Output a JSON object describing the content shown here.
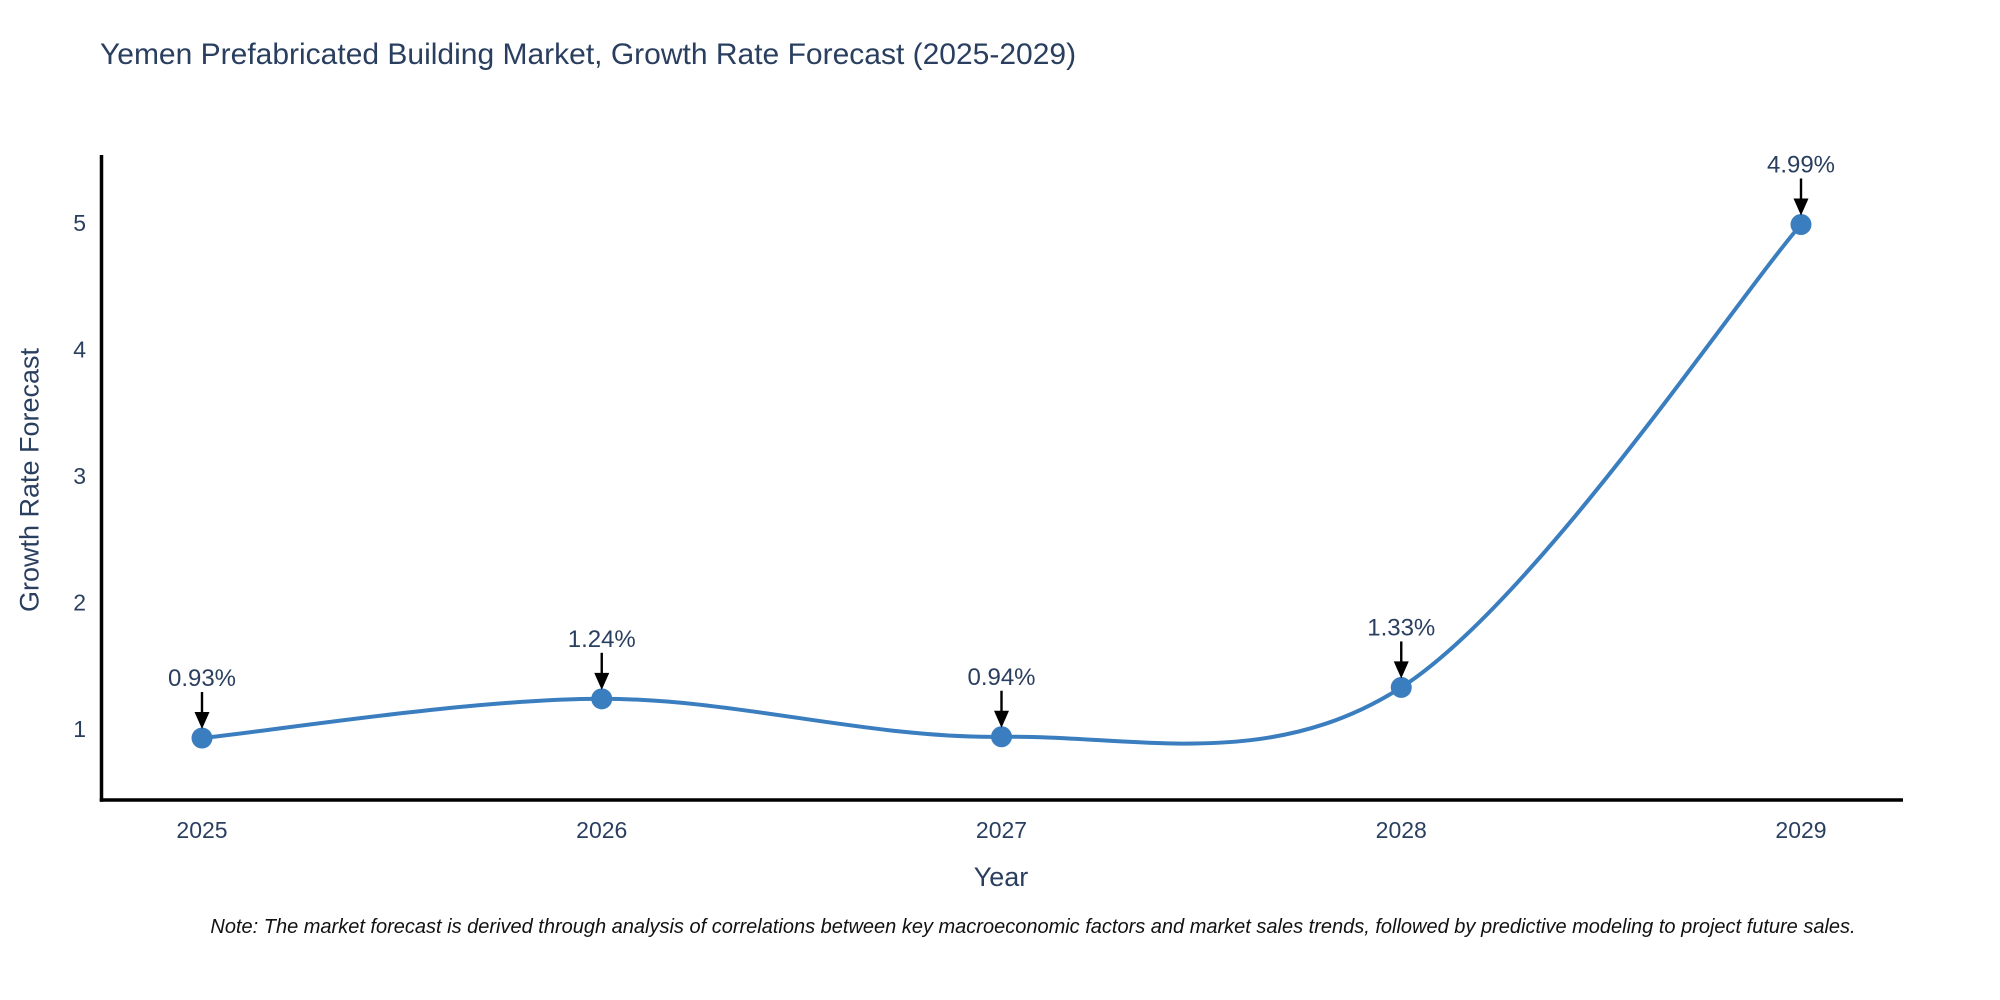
{
  "title": "Yemen Prefabricated Building Market, Growth Rate Forecast (2025-2029)",
  "note": "Note: The market forecast is derived through analysis of correlations between key macroeconomic factors and market sales trends, followed by predictive modeling to project future sales.",
  "chart_data": {
    "type": "line",
    "title": "Yemen Prefabricated Building Market, Growth Rate Forecast (2025-2029)",
    "xlabel": "Year",
    "ylabel": "Growth Rate Forecast",
    "categories": [
      "2025",
      "2026",
      "2027",
      "2028",
      "2029"
    ],
    "series": [
      {
        "name": "Growth Rate Forecast",
        "values": [
          0.93,
          1.24,
          0.94,
          1.33,
          4.99
        ],
        "labels": [
          "0.93%",
          "1.24%",
          "0.94%",
          "1.33%",
          "4.99%"
        ]
      }
    ],
    "yticks": [
      1,
      2,
      3,
      4,
      5
    ],
    "ylim": [
      0.44,
      5.5
    ],
    "line_shape": "spline",
    "grid": false,
    "legend_position": "none",
    "colors": {
      "line": "#3a7ebf",
      "marker": "#3a7ebf",
      "axis_line": "#000000",
      "text": "#2a3f5f",
      "annotation_arrow": "#000000",
      "note_text": "#111111",
      "background": "#ffffff"
    }
  }
}
